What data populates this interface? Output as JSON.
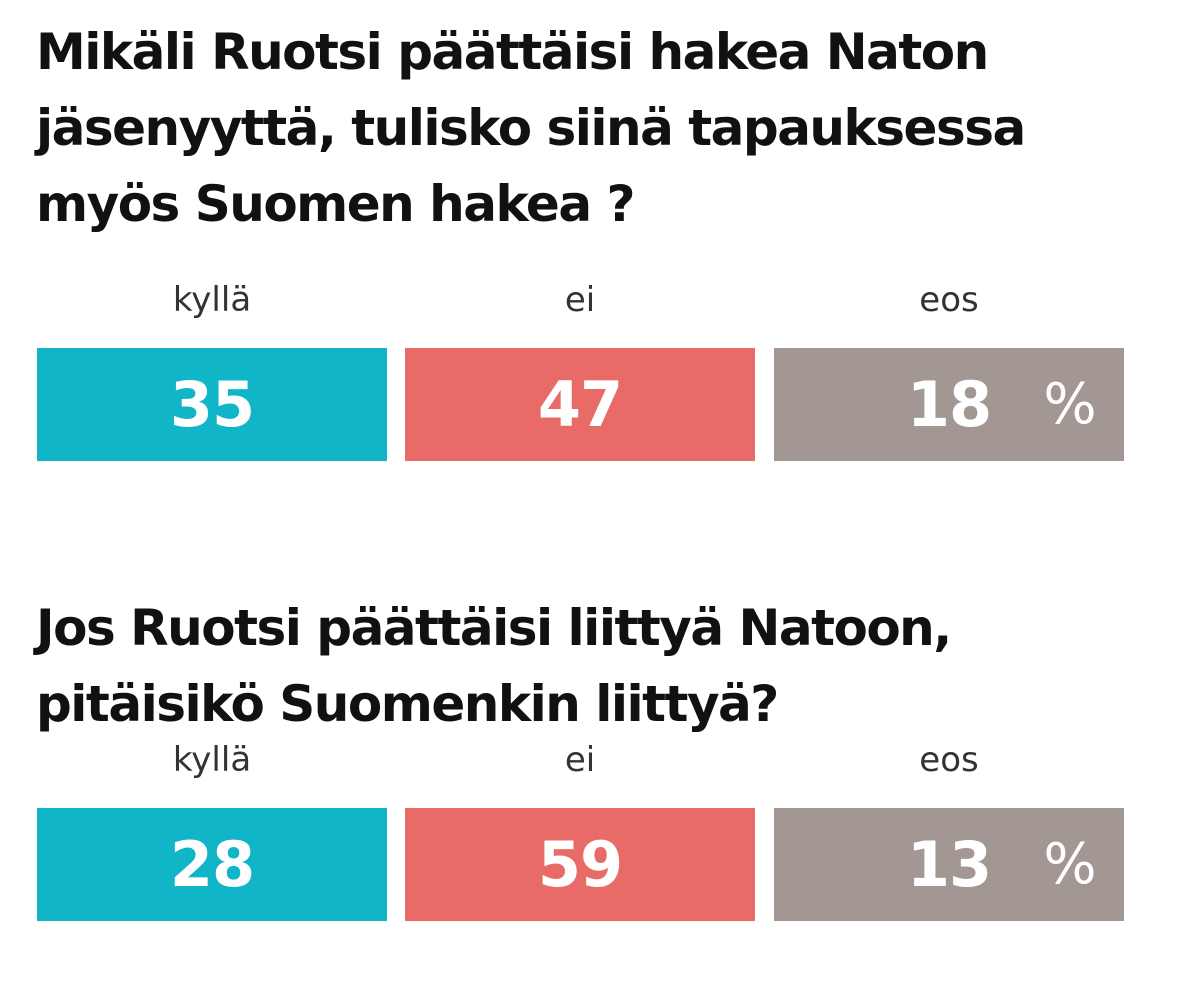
{
  "chart_data": [
    {
      "type": "bar",
      "title": "Mikäli Ruotsi päättäisi hakea Naton jäsenyyttä, tulisko siinä tapauksessa myös Suomen hakea ?",
      "title_lines": [
        "Mikäli Ruotsi päättäisi hakea Naton",
        "jäsenyyttä, tulisko siinä tapauksessa",
        "myös Suomen hakea ?"
      ],
      "categories": [
        "kyllä",
        "ei",
        "eos"
      ],
      "values": [
        35,
        47,
        18
      ],
      "unit": "%",
      "colors": [
        "#10b5c8",
        "#e86b68",
        "#a39794"
      ]
    },
    {
      "type": "bar",
      "title": "Jos Ruotsi päättäisi liittyä Natoon, pitäisikö Suomenkin liittyä?",
      "title_lines": [
        "Jos Ruotsi päättäisi liittyä Natoon,",
        "pitäisikö Suomenkin liittyä?"
      ],
      "categories": [
        "kyllä",
        "ei",
        "eos"
      ],
      "values": [
        28,
        59,
        13
      ],
      "unit": "%",
      "colors": [
        "#10b5c8",
        "#e86b68",
        "#a39794"
      ]
    }
  ]
}
